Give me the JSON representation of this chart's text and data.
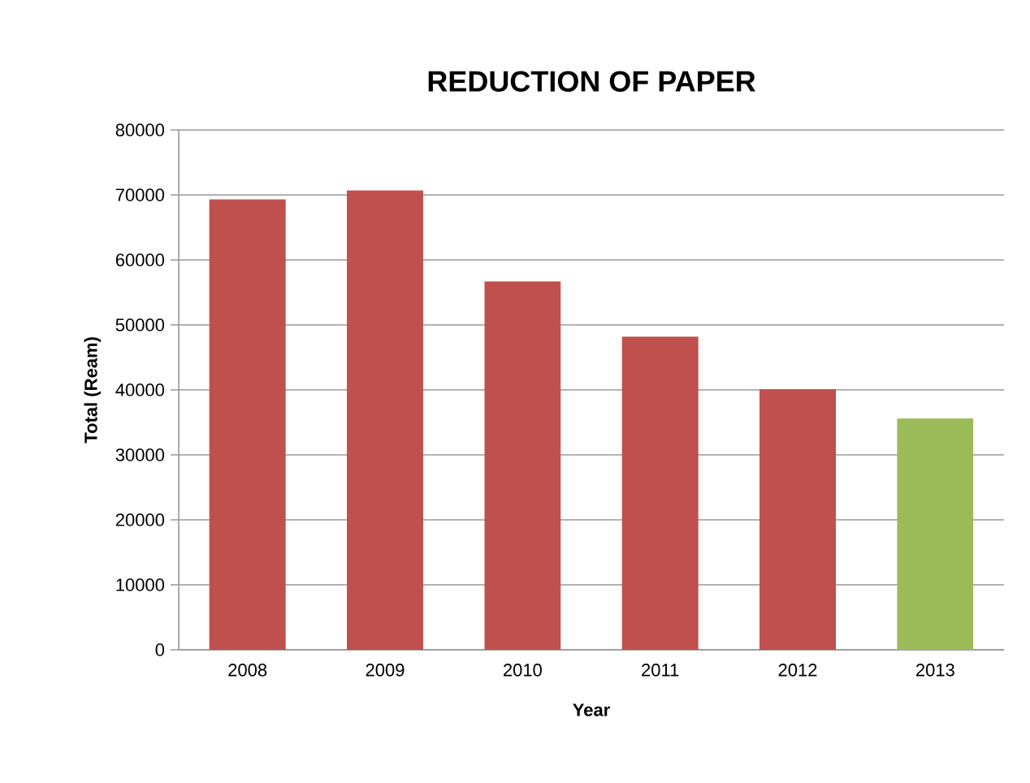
{
  "chart_data": {
    "type": "bar",
    "title": "REDUCTION OF PAPER",
    "xlabel": "Year",
    "ylabel": "Total (Ream)",
    "categories": [
      "2008",
      "2009",
      "2010",
      "2011",
      "2012",
      "2013"
    ],
    "values": [
      69300,
      70700,
      56700,
      48200,
      40100,
      35600
    ],
    "colors": [
      "#c0504d",
      "#c0504d",
      "#c0504d",
      "#c0504d",
      "#c0504d",
      "#9bbb59"
    ],
    "ylim": [
      0,
      80000
    ],
    "yticks": [
      0,
      10000,
      20000,
      30000,
      40000,
      50000,
      60000,
      70000,
      80000
    ],
    "grid": "y"
  }
}
